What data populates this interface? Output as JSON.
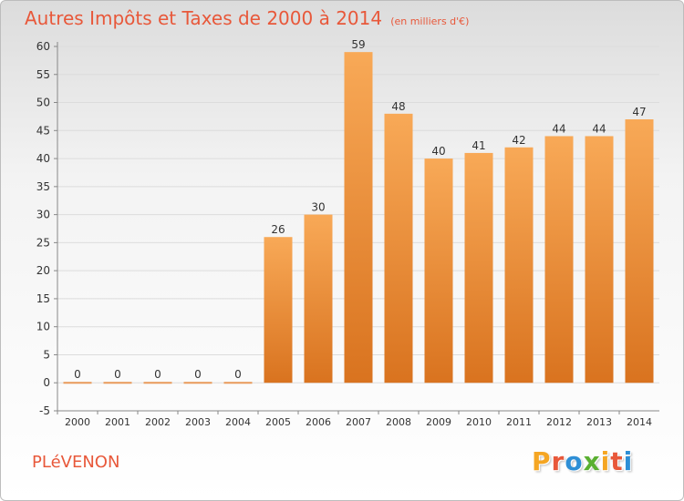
{
  "header": {
    "title": "Autres Impôts et Taxes de 2000 à 2014",
    "unit": "(en milliers d'€)"
  },
  "footer": {
    "commune": "PLéVENON",
    "logo": "Proxiti",
    "logo_colors": [
      "#f5a623",
      "#e8583a",
      "#2e8fd6",
      "#5ab031",
      "#f5a623",
      "#e8583a",
      "#2e8fd6"
    ]
  },
  "colors": {
    "bar_light": "#f8a957",
    "bar_dark": "#d9731f",
    "zero_line": "#e89a5a",
    "text": "#333333",
    "grid": "#dcdcdc",
    "accent": "#e8583a"
  },
  "chart_data": {
    "type": "bar",
    "title": "Autres Impôts et Taxes de 2000 à 2014",
    "subtitle": "(en milliers d'€)",
    "categories": [
      "2000",
      "2001",
      "2002",
      "2003",
      "2004",
      "2005",
      "2006",
      "2007",
      "2008",
      "2009",
      "2010",
      "2011",
      "2012",
      "2013",
      "2014"
    ],
    "values": [
      0,
      0,
      0,
      0,
      0,
      26,
      30,
      59,
      48,
      40,
      41,
      42,
      44,
      44,
      47
    ],
    "ylim": [
      -5,
      60
    ],
    "yticks": [
      -5,
      0,
      5,
      10,
      15,
      20,
      25,
      30,
      35,
      40,
      45,
      50,
      55,
      60
    ],
    "grid": true,
    "legend": "none"
  }
}
